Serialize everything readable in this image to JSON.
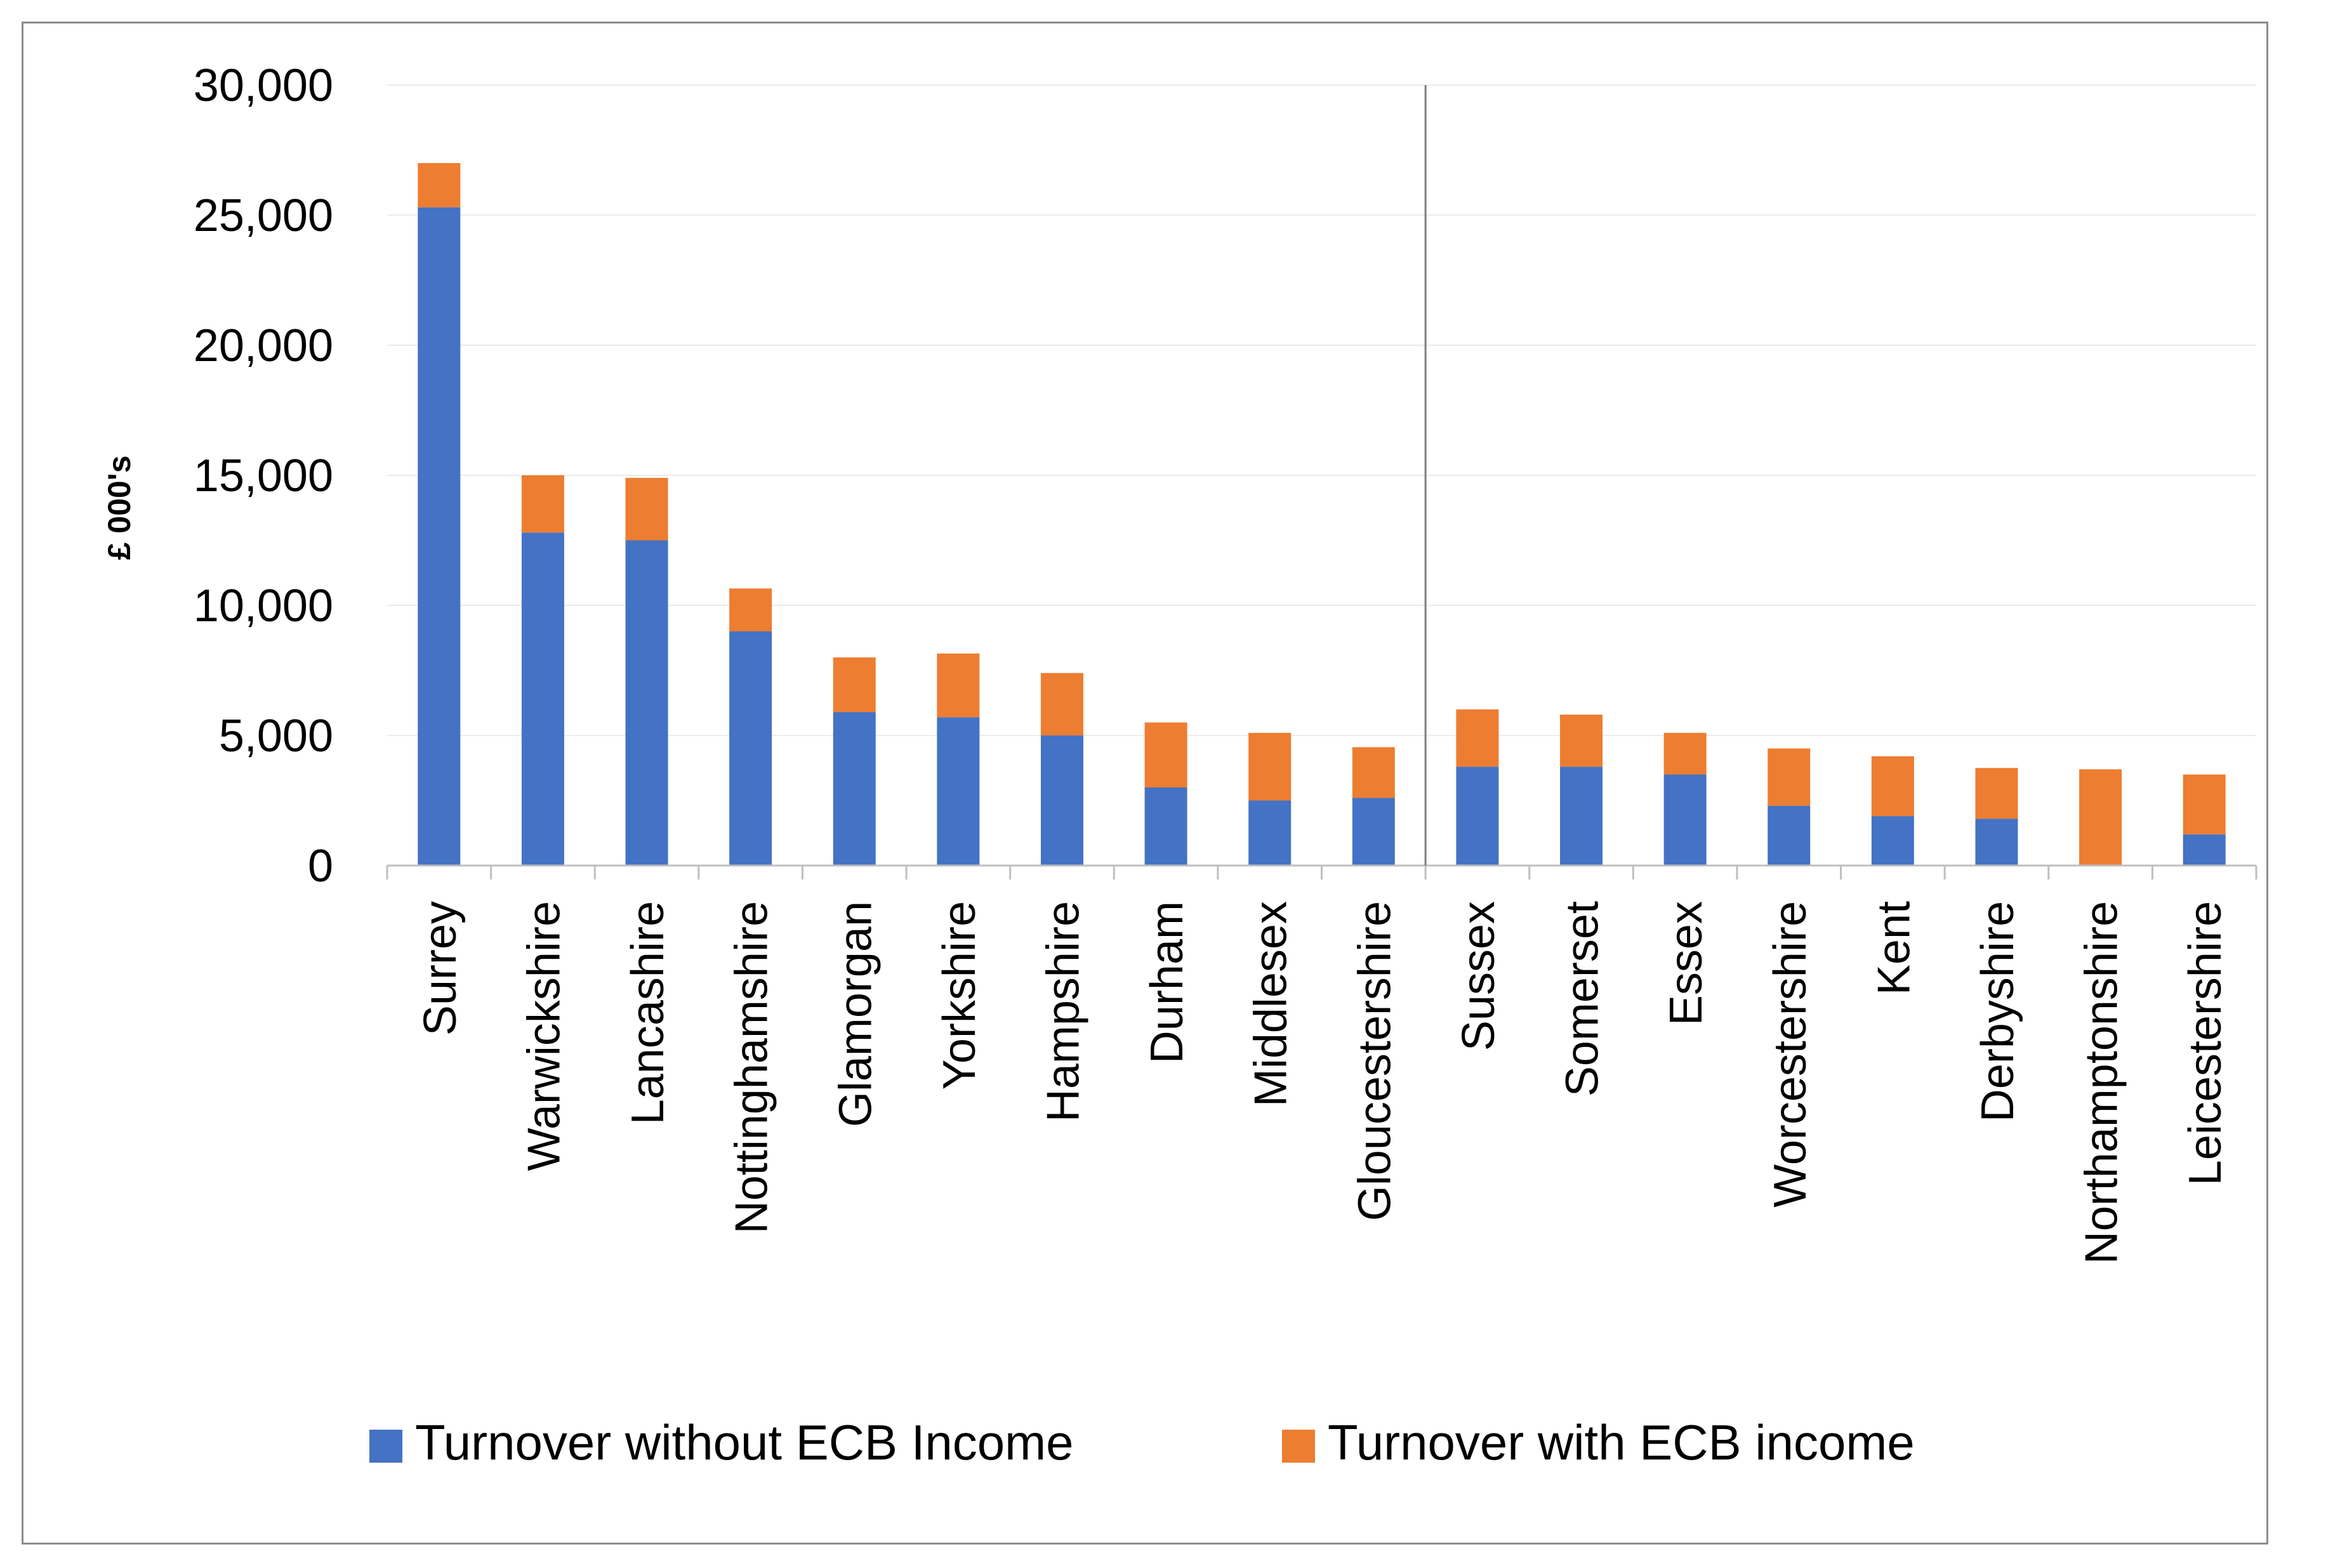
{
  "chart_data": {
    "type": "bar",
    "stacked": true,
    "title": "",
    "xlabel": "",
    "ylabel": "£ 000's",
    "ylim": [
      0,
      30000
    ],
    "yticks": [
      0,
      5000,
      10000,
      15000,
      20000,
      25000,
      30000
    ],
    "ytick_labels": [
      "0",
      "5,000",
      "10,000",
      "15,000",
      "20,000",
      "25,000",
      "30,000"
    ],
    "grid": true,
    "legend_position": "bottom",
    "divider_after_category": "Gloucestershire",
    "categories": [
      "Surrey",
      "Warwickshire",
      "Lancashire",
      "Nottinghamshire",
      "Glamorgan",
      "Yorkshire",
      "Hampshire",
      "Durham",
      "Middlesex",
      "Gloucestershire",
      "Sussex",
      "Somerset",
      "Essex",
      "Worcestershire",
      "Kent",
      "Derbyshire",
      "Northamptonshire",
      "Leicestershire"
    ],
    "series": [
      {
        "name": "Turnover without ECB Income",
        "color": "#4472C4",
        "values": [
          25300,
          12800,
          12500,
          9000,
          5900,
          5700,
          5000,
          3000,
          2500,
          2600,
          3800,
          3800,
          3500,
          2300,
          1900,
          1800,
          0,
          1200
        ]
      },
      {
        "name": "Turnover with ECB income",
        "color": "#ED7D31",
        "values": [
          1700,
          2200,
          2400,
          1650,
          2100,
          2450,
          2400,
          2500,
          2600,
          1950,
          2200,
          2000,
          1600,
          2200,
          2300,
          1950,
          3700,
          2300
        ]
      }
    ]
  }
}
